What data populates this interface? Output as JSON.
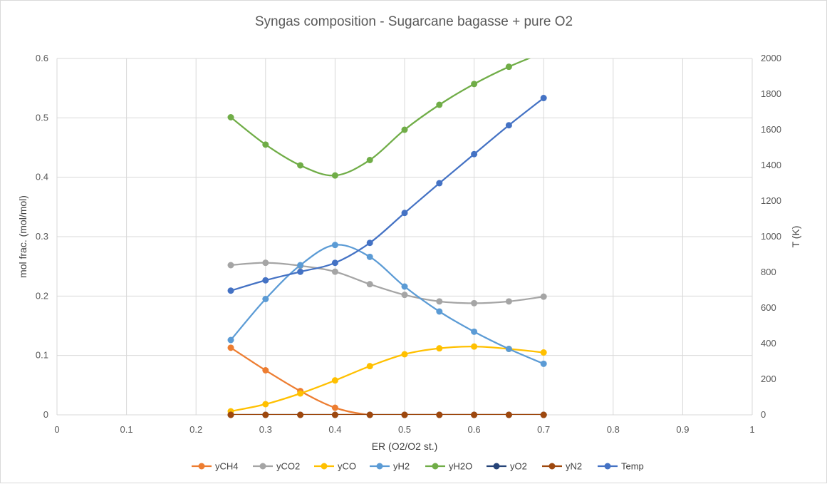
{
  "chart_data": {
    "type": "line",
    "title": "Syngas composition - Sugarcane bagasse + pure O2",
    "xlabel": "ER (O2/O2 st.)",
    "ylabel": "mol frac. (mol/mol)",
    "y2label": "T (K)",
    "xlim": [
      0,
      1
    ],
    "ylim": [
      0,
      0.6
    ],
    "y2lim": [
      0,
      2000
    ],
    "x_ticks": [
      "0",
      "0.1",
      "0.2",
      "0.3",
      "0.4",
      "0.5",
      "0.6",
      "0.7",
      "0.8",
      "0.9",
      "1"
    ],
    "y_ticks": [
      "0",
      "0.1",
      "0.2",
      "0.3",
      "0.4",
      "0.5",
      "0.6"
    ],
    "y2_ticks": [
      "0",
      "200",
      "400",
      "600",
      "800",
      "1000",
      "1200",
      "1400",
      "1600",
      "1800",
      "2000"
    ],
    "grid": true,
    "legend_position": "bottom",
    "x": [
      0.25,
      0.3,
      0.35,
      0.4,
      0.45,
      0.5,
      0.55,
      0.6,
      0.65,
      0.7
    ],
    "series": [
      {
        "name": "yCH4",
        "color": "#ED7D31",
        "axis": "left",
        "values": [
          0.113,
          0.075,
          0.04,
          0.012,
          0.0,
          0.0,
          0.0,
          0.0,
          0.0,
          0.0
        ]
      },
      {
        "name": "yCO2",
        "color": "#A5A5A5",
        "axis": "left",
        "values": [
          0.252,
          0.256,
          0.251,
          0.241,
          0.22,
          0.202,
          0.191,
          0.188,
          0.191,
          0.199
        ]
      },
      {
        "name": "yCO",
        "color": "#FFC000",
        "axis": "left",
        "values": [
          0.006,
          0.018,
          0.036,
          0.058,
          0.082,
          0.102,
          0.112,
          0.115,
          0.111,
          0.105
        ]
      },
      {
        "name": "yH2",
        "color": "#5B9BD5",
        "axis": "left",
        "values": [
          0.126,
          0.195,
          0.252,
          0.286,
          0.266,
          0.216,
          0.174,
          0.14,
          0.111,
          0.086
        ]
      },
      {
        "name": "yH2O",
        "color": "#70AD47",
        "axis": "left",
        "values": [
          0.501,
          0.455,
          0.42,
          0.403,
          0.429,
          0.48,
          0.522,
          0.557,
          0.586,
          0.61
        ]
      },
      {
        "name": "yO2",
        "color": "#264478",
        "axis": "left",
        "values": [
          0.0,
          0.0,
          0.0,
          0.0,
          0.0,
          0.0,
          0.0,
          0.0,
          0.0,
          0.0
        ]
      },
      {
        "name": "yN2",
        "color": "#9E480E",
        "axis": "left",
        "values": [
          0.0,
          0.0,
          0.0,
          0.0,
          0.0,
          0.0,
          0.0,
          0.0,
          0.0,
          0.0
        ]
      },
      {
        "name": "Temp",
        "color": "#4472C4",
        "axis": "right",
        "values": [
          697,
          755,
          803,
          853,
          965,
          1133,
          1300,
          1463,
          1625,
          1778
        ]
      }
    ]
  }
}
